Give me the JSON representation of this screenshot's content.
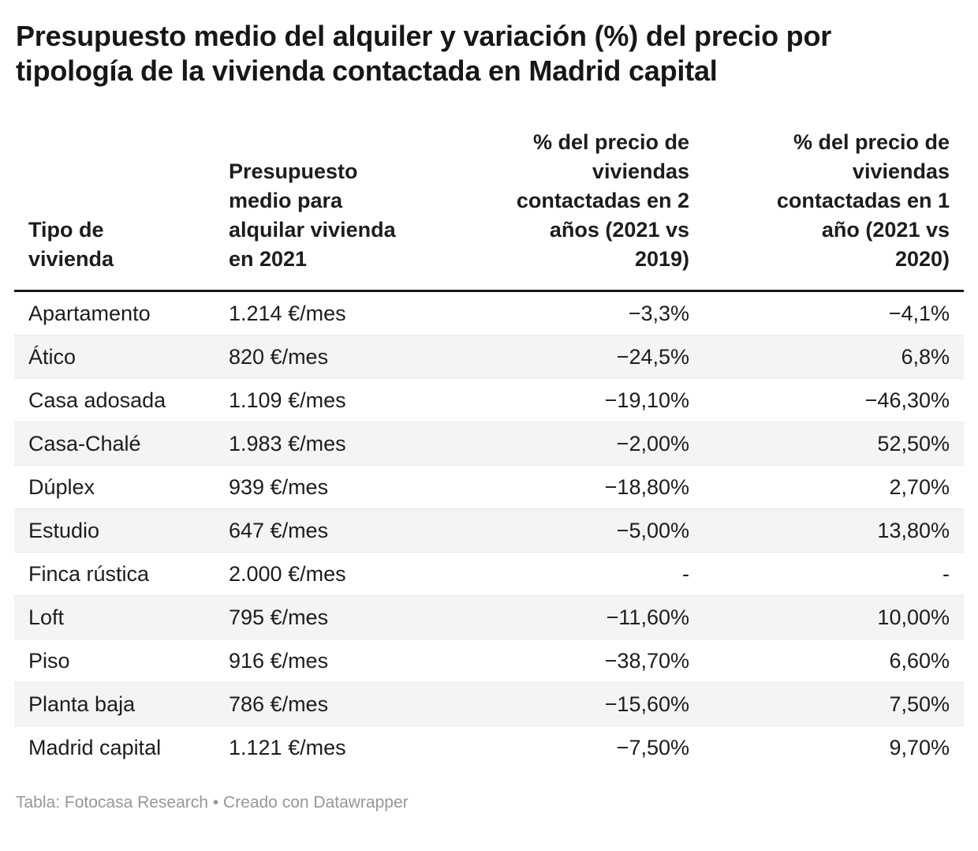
{
  "chart_data": {
    "type": "table",
    "title": "Presupuesto medio del alquiler y variación (%) del precio por\ntipología de la vivienda contactada en Madrid capital",
    "columns": [
      "Tipo de\nvivienda",
      "Presupuesto\nmedio para\nalquilar vivienda\nen 2021",
      "% del precio de\nviviendas\ncontactadas en 2\naños (2021 vs\n2019)",
      "% del precio de\nviviendas\ncontactadas en 1\naño (2021 vs\n2020)"
    ],
    "rows": [
      [
        "Apartamento",
        "1.214 €/mes",
        "−3,3%",
        "−4,1%"
      ],
      [
        "Ático",
        "820 €/mes",
        "−24,5%",
        "6,8%"
      ],
      [
        "Casa adosada",
        "1.109 €/mes",
        "−19,10%",
        "−46,30%"
      ],
      [
        "Casa-Chalé",
        "1.983 €/mes",
        "−2,00%",
        "52,50%"
      ],
      [
        "Dúplex",
        "939 €/mes",
        "−18,80%",
        "2,70%"
      ],
      [
        "Estudio",
        "647 €/mes",
        "−5,00%",
        "13,80%"
      ],
      [
        "Finca rústica",
        "2.000 €/mes",
        "-",
        "-"
      ],
      [
        "Loft",
        "795 €/mes",
        "−11,60%",
        "10,00%"
      ],
      [
        "Piso",
        "916 €/mes",
        "−38,70%",
        "6,60%"
      ],
      [
        "Planta baja",
        "786 €/mes",
        "−15,60%",
        "7,50%"
      ],
      [
        "Madrid capital",
        "1.121 €/mes",
        "−7,50%",
        "9,70%"
      ]
    ],
    "legend_position": "none",
    "grid": "row-stripes"
  },
  "footer": {
    "credit": "Tabla: Fotocasa Research • Creado con Datawrapper"
  },
  "colors": {
    "title_text": "#171717",
    "body_text": "#1d1d1d",
    "header_rule": "#1a1a1a",
    "row_stripe": "#f4f4f4",
    "row_border": "#e8e8e8",
    "footer_text": "#979797",
    "background": "#ffffff"
  }
}
